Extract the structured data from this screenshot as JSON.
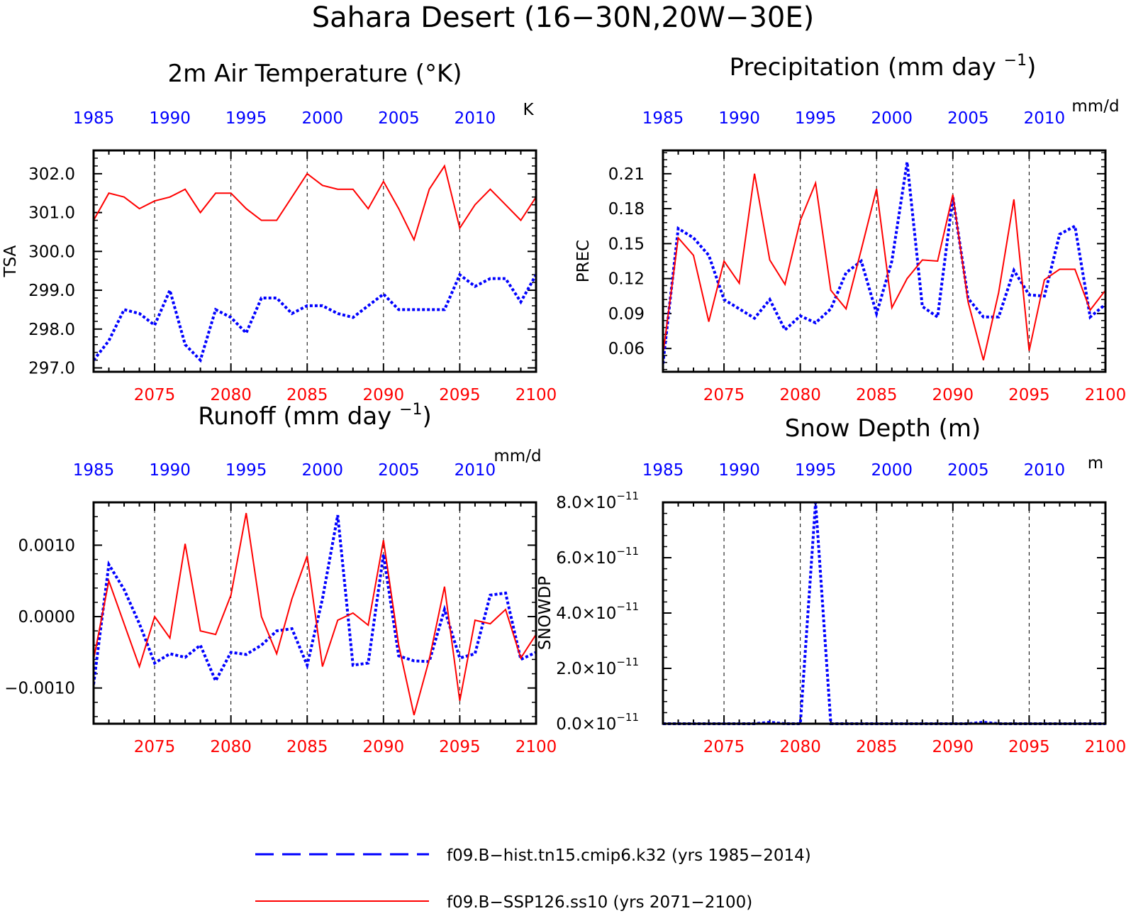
{
  "title": "Sahara Desert (16−30N,20W−30E)",
  "colors": {
    "hist": "#0000ff",
    "ssp": "#ff0000",
    "axis": "#000000"
  },
  "legend": [
    {
      "label": "f09.B−hist.tn15.cmip6.k32 (yrs 1985−2014)",
      "color": "#0000ff",
      "style": "dashed"
    },
    {
      "label": "f09.B−SSP126.ss10 (yrs 2071−2100)",
      "color": "#ff0000",
      "style": "solid"
    }
  ],
  "chart_data": [
    {
      "type": "line",
      "title": "2m Air Temperature (°K)",
      "ylabel": "TSA",
      "units": "K",
      "ylim": [
        296.9,
        302.6
      ],
      "yticks": [
        297,
        298,
        299,
        300,
        301,
        302
      ],
      "ytick_labels": [
        "297.0",
        "298.0",
        "299.0",
        "300.0",
        "301.0",
        "302.0"
      ],
      "x_top_ticks": [
        "1985",
        "1990",
        "1995",
        "2000",
        "2005",
        "2010"
      ],
      "x_bottom_ticks": [
        "2075",
        "2080",
        "2085",
        "2090",
        "2095",
        "2100"
      ],
      "series": [
        {
          "name": "f09.B−hist.tn15.cmip6.k32",
          "x": [
            1985,
            1986,
            1987,
            1988,
            1989,
            1990,
            1991,
            1992,
            1993,
            1994,
            1995,
            1996,
            1997,
            1998,
            1999,
            2000,
            2001,
            2002,
            2003,
            2004,
            2005,
            2006,
            2007,
            2008,
            2009,
            2010,
            2011,
            2012,
            2013,
            2014
          ],
          "values": [
            297.2,
            297.7,
            298.5,
            298.4,
            298.1,
            299.0,
            297.6,
            297.2,
            298.5,
            298.3,
            297.9,
            298.8,
            298.8,
            298.4,
            298.6,
            298.6,
            298.4,
            298.3,
            298.6,
            298.9,
            298.5,
            298.5,
            298.5,
            298.5,
            299.4,
            299.1,
            299.3,
            299.3,
            298.7,
            299.4
          ]
        },
        {
          "name": "f09.B−SSP126.ss10",
          "x": [
            2071,
            2072,
            2073,
            2074,
            2075,
            2076,
            2077,
            2078,
            2079,
            2080,
            2081,
            2082,
            2083,
            2084,
            2085,
            2086,
            2087,
            2088,
            2089,
            2090,
            2091,
            2092,
            2093,
            2094,
            2095,
            2096,
            2097,
            2098,
            2099,
            2100
          ],
          "values": [
            300.8,
            301.5,
            301.4,
            301.1,
            301.3,
            301.4,
            301.6,
            301.0,
            301.5,
            301.5,
            301.1,
            300.8,
            300.8,
            301.4,
            302.0,
            301.7,
            301.6,
            301.6,
            301.1,
            301.8,
            301.1,
            300.3,
            301.6,
            302.2,
            300.6,
            301.2,
            301.6,
            301.2,
            300.8,
            301.4
          ]
        }
      ]
    },
    {
      "type": "line",
      "title": "Precipitation (mm day⁻¹)",
      "ylabel": "PREC",
      "units": "mm/d",
      "ylim": [
        0.04,
        0.23
      ],
      "yticks": [
        0.06,
        0.09,
        0.12,
        0.15,
        0.18,
        0.21
      ],
      "ytick_labels": [
        "0.06",
        "0.09",
        "0.12",
        "0.15",
        "0.18",
        "0.21"
      ],
      "x_top_ticks": [
        "1985",
        "1990",
        "1995",
        "2000",
        "2005",
        "2010"
      ],
      "x_bottom_ticks": [
        "2075",
        "2080",
        "2085",
        "2090",
        "2095",
        "2100"
      ],
      "series": [
        {
          "name": "f09.B−hist.tn15.cmip6.k32",
          "x": [
            1985,
            1986,
            1987,
            1988,
            1989,
            1990,
            1991,
            1992,
            1993,
            1994,
            1995,
            1996,
            1997,
            1998,
            1999,
            2000,
            2001,
            2002,
            2003,
            2004,
            2005,
            2006,
            2007,
            2008,
            2009,
            2010,
            2011,
            2012,
            2013,
            2014
          ],
          "values": [
            0.047,
            0.163,
            0.155,
            0.14,
            0.102,
            0.094,
            0.086,
            0.102,
            0.076,
            0.088,
            0.082,
            0.094,
            0.125,
            0.135,
            0.09,
            0.135,
            0.22,
            0.096,
            0.087,
            0.19,
            0.103,
            0.087,
            0.087,
            0.127,
            0.106,
            0.105,
            0.158,
            0.165,
            0.087,
            0.098
          ]
        },
        {
          "name": "f09.B−SSP126.ss10",
          "x": [
            2071,
            2072,
            2073,
            2074,
            2075,
            2076,
            2077,
            2078,
            2079,
            2080,
            2081,
            2082,
            2083,
            2084,
            2085,
            2086,
            2087,
            2088,
            2089,
            2090,
            2091,
            2092,
            2093,
            2094,
            2095,
            2096,
            2097,
            2098,
            2099,
            2100
          ],
          "values": [
            0.055,
            0.155,
            0.14,
            0.083,
            0.135,
            0.116,
            0.21,
            0.136,
            0.115,
            0.17,
            0.202,
            0.11,
            0.094,
            0.145,
            0.197,
            0.095,
            0.12,
            0.136,
            0.135,
            0.192,
            0.1,
            0.05,
            0.108,
            0.188,
            0.058,
            0.119,
            0.128,
            0.128,
            0.093,
            0.11
          ]
        }
      ]
    },
    {
      "type": "line",
      "title": "Runoff (mm day⁻¹)",
      "ylabel": "",
      "units": "mm/d",
      "ylim": [
        -0.0015,
        0.0016
      ],
      "yticks": [
        -0.001,
        0,
        0.001
      ],
      "ytick_labels": [
        "−0.0010",
        "0.0000",
        "0.0010"
      ],
      "x_top_ticks": [
        "1985",
        "1990",
        "1995",
        "2000",
        "2005",
        "2010"
      ],
      "x_bottom_ticks": [
        "2075",
        "2080",
        "2085",
        "2090",
        "2095",
        "2100"
      ],
      "series": [
        {
          "name": "f09.B−hist.tn15.cmip6.k32",
          "x": [
            1985,
            1986,
            1987,
            1988,
            1989,
            1990,
            1991,
            1992,
            1993,
            1994,
            1995,
            1996,
            1997,
            1998,
            1999,
            2000,
            2001,
            2002,
            2003,
            2004,
            2005,
            2006,
            2007,
            2008,
            2009,
            2010,
            2011,
            2012,
            2013,
            2014
          ],
          "values": [
            -0.00095,
            0.00073,
            0.00038,
            -0.0001,
            -0.00065,
            -0.00052,
            -0.00057,
            -0.0004,
            -0.0009,
            -0.0005,
            -0.00053,
            -0.0004,
            -0.0002,
            -0.00017,
            -0.00068,
            0.00025,
            0.00142,
            -0.00068,
            -0.00065,
            0.00087,
            -0.00055,
            -0.00062,
            -0.00063,
            0.0001,
            -0.00058,
            -0.00052,
            0.0003,
            0.00033,
            -0.0006,
            -0.0005
          ]
        },
        {
          "name": "f09.B−SSP126.ss10",
          "x": [
            2071,
            2072,
            2073,
            2074,
            2075,
            2076,
            2077,
            2078,
            2079,
            2080,
            2081,
            2082,
            2083,
            2084,
            2085,
            2086,
            2087,
            2088,
            2089,
            2090,
            2091,
            2092,
            2093,
            2094,
            2095,
            2096,
            2097,
            2098,
            2099,
            2100
          ],
          "values": [
            -0.0006,
            0.0005,
            -0.0001,
            -0.0007,
            0.0,
            -0.0003,
            0.00102,
            -0.0002,
            -0.00025,
            0.0003,
            0.00145,
            0.0,
            -0.00052,
            0.00025,
            0.00085,
            -0.0007,
            -5e-05,
            5e-05,
            -0.00012,
            0.00107,
            -0.0004,
            -0.00138,
            -0.0006,
            0.00042,
            -0.00118,
            -5e-05,
            -0.0001,
            0.0001,
            -0.00058,
            -0.00025
          ]
        }
      ]
    },
    {
      "type": "line",
      "title": "Snow Depth (m)",
      "ylabel": "SNOWDP",
      "units": "m",
      "ylim": [
        0,
        8e-11
      ],
      "yticks": [
        0,
        2e-11,
        4e-11,
        6e-11,
        8e-11
      ],
      "ytick_labels": [
        "0.0×10",
        "2.0×10",
        "4.0×10",
        "6.0×10",
        "8.0×10"
      ],
      "ytick_exponent": "−11",
      "x_top_ticks": [
        "1985",
        "1990",
        "1995",
        "2000",
        "2005",
        "2010"
      ],
      "x_bottom_ticks": [
        "2075",
        "2080",
        "2085",
        "2090",
        "2095",
        "2100"
      ],
      "series": [
        {
          "name": "f09.B−hist.tn15.cmip6.k32",
          "x": [
            1985,
            1986,
            1987,
            1988,
            1989,
            1990,
            1991,
            1992,
            1993,
            1994,
            1995,
            1996,
            1997,
            1998,
            1999,
            2000,
            2001,
            2002,
            2003,
            2004,
            2005,
            2006,
            2007,
            2008,
            2009,
            2010,
            2011,
            2012,
            2013,
            2014
          ],
          "values": [
            0,
            0,
            0,
            0,
            0,
            0,
            0,
            5e-13,
            0,
            0,
            8e-11,
            0,
            0,
            0,
            0,
            0,
            0,
            0,
            0,
            0,
            0,
            5e-13,
            0,
            0,
            0,
            0,
            0,
            0,
            0,
            0
          ]
        },
        {
          "name": "f09.B−SSP126.ss10",
          "x": [
            2071,
            2072,
            2073,
            2074,
            2075,
            2076,
            2077,
            2078,
            2079,
            2080,
            2081,
            2082,
            2083,
            2084,
            2085,
            2086,
            2087,
            2088,
            2089,
            2090,
            2091,
            2092,
            2093,
            2094,
            2095,
            2096,
            2097,
            2098,
            2099,
            2100
          ],
          "values": [
            0,
            0,
            0,
            0,
            0,
            0,
            0,
            0,
            0,
            0,
            0,
            0,
            0,
            0,
            0,
            0,
            0,
            0,
            0,
            0,
            0,
            0,
            0,
            0,
            0,
            0,
            0,
            0,
            0,
            0
          ]
        }
      ]
    }
  ]
}
